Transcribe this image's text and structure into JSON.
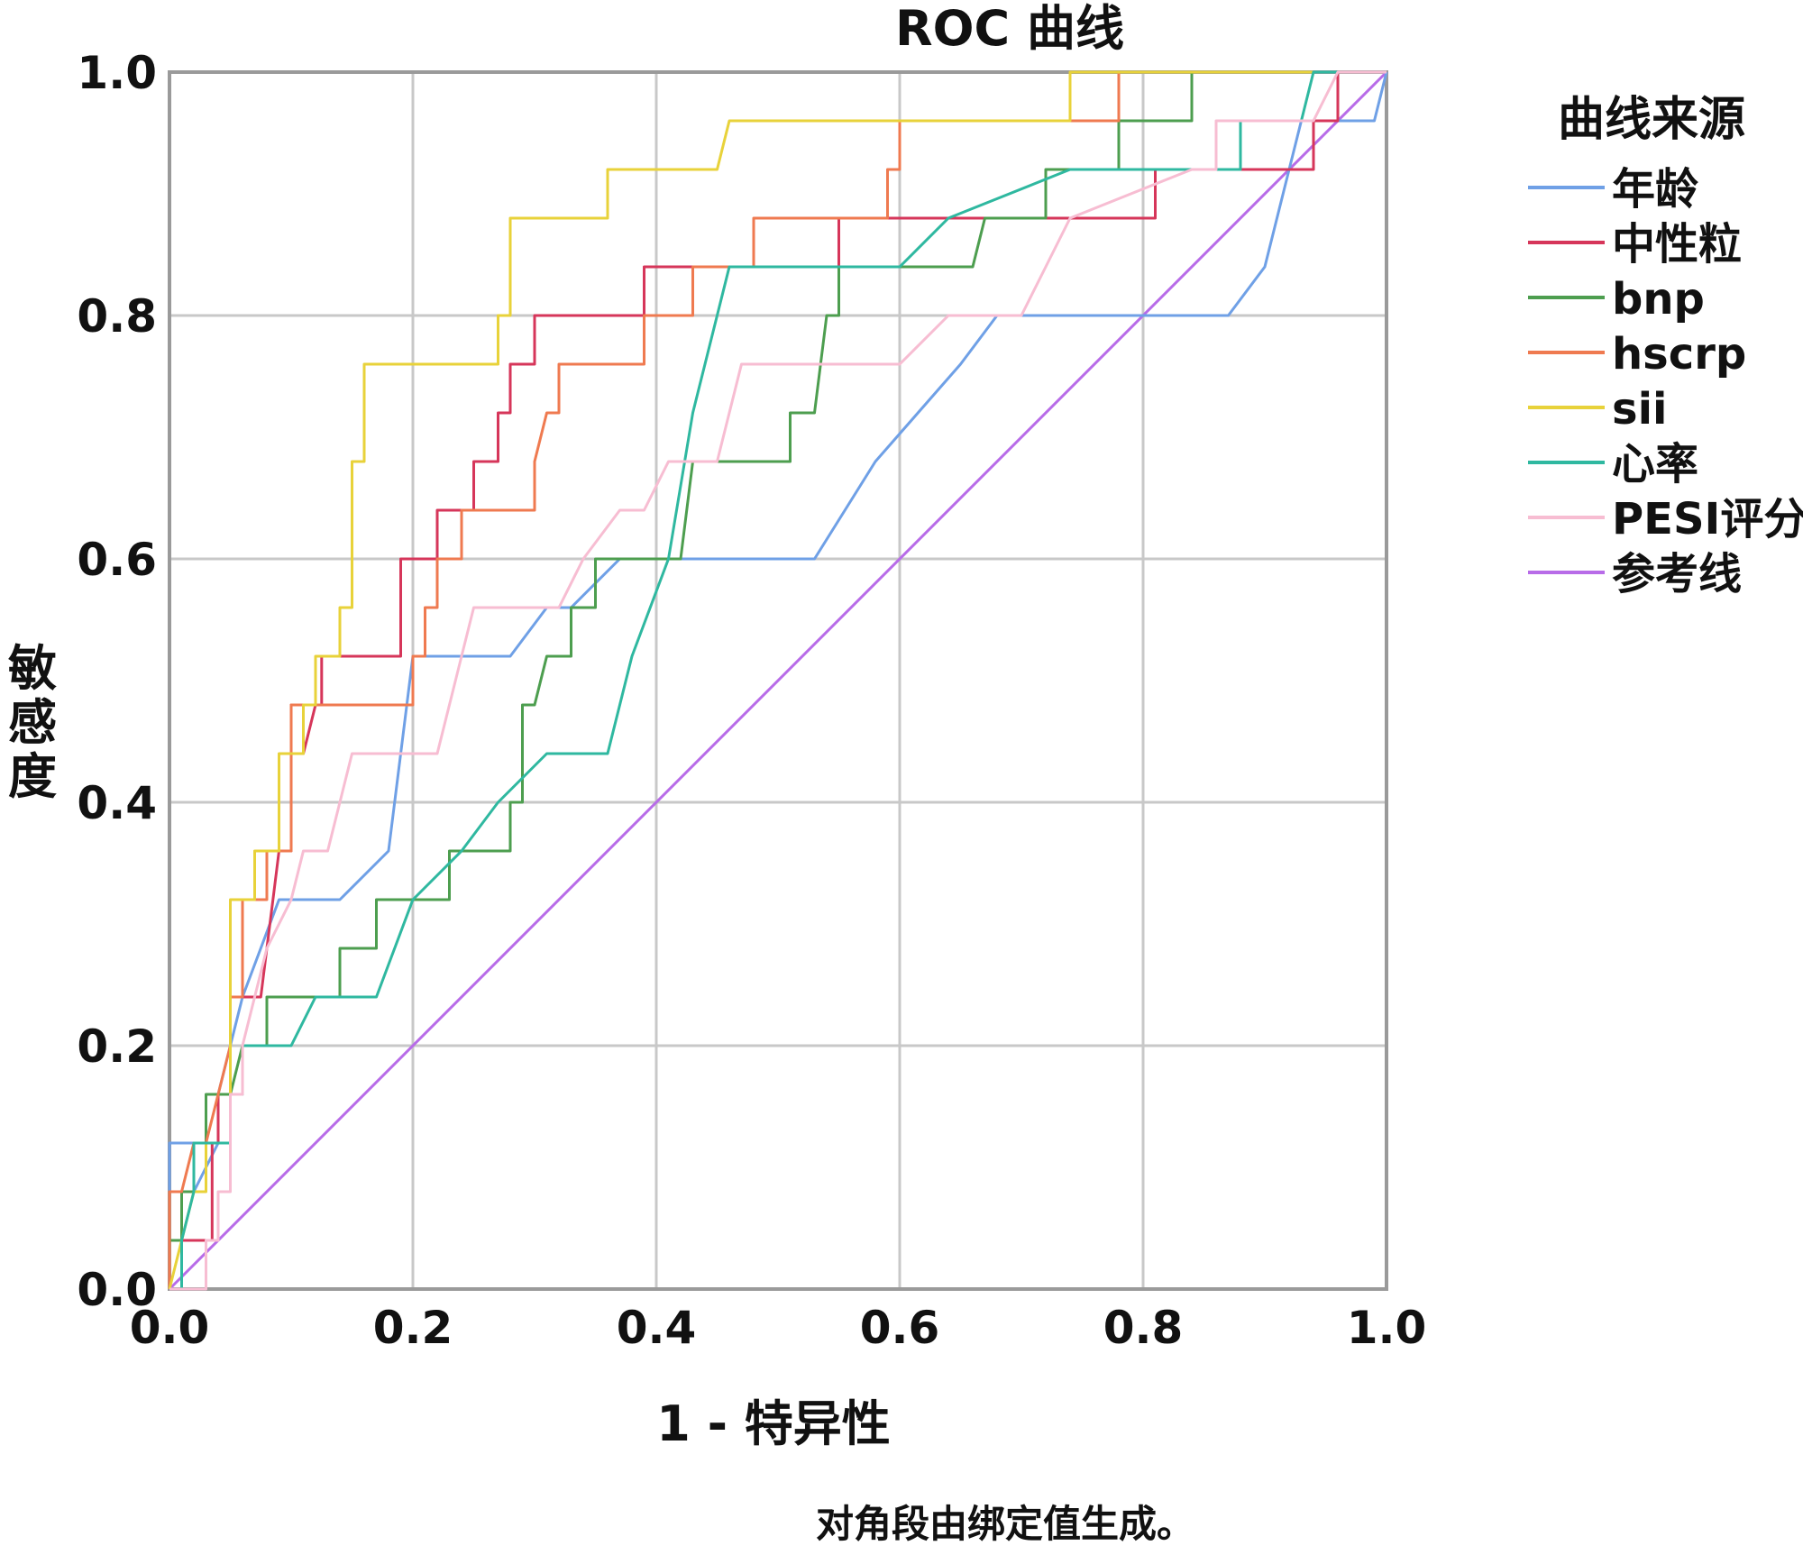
{
  "chart_data": {
    "type": "line",
    "title": "ROC 曲线",
    "xlabel": "1 - 特异性",
    "ylabel": "敏感度",
    "xlim": [
      0,
      1
    ],
    "ylim": [
      0,
      1
    ],
    "x_ticks": [
      "0.0",
      "0.2",
      "0.4",
      "0.6",
      "0.8",
      "1.0"
    ],
    "y_ticks": [
      "0.0",
      "0.2",
      "0.4",
      "0.6",
      "0.8",
      "1.0"
    ],
    "grid": true,
    "legend_title": "曲线来源",
    "legend_position": "right",
    "footnote": "对角段由绑定值生成。",
    "series": [
      {
        "name": "年龄",
        "color": "#6fa0e6",
        "points": [
          [
            0,
            0
          ],
          [
            0,
            0.12
          ],
          [
            0.02,
            0.12
          ],
          [
            0.02,
            0.08
          ],
          [
            0.04,
            0.12
          ],
          [
            0.04,
            0.16
          ],
          [
            0.06,
            0.24
          ],
          [
            0.09,
            0.32
          ],
          [
            0.14,
            0.32
          ],
          [
            0.18,
            0.36
          ],
          [
            0.2,
            0.52
          ],
          [
            0.28,
            0.52
          ],
          [
            0.31,
            0.56
          ],
          [
            0.33,
            0.56
          ],
          [
            0.37,
            0.6
          ],
          [
            0.53,
            0.6
          ],
          [
            0.58,
            0.68
          ],
          [
            0.65,
            0.76
          ],
          [
            0.68,
            0.8
          ],
          [
            0.87,
            0.8
          ],
          [
            0.9,
            0.84
          ],
          [
            0.93,
            0.96
          ],
          [
            0.99,
            0.96
          ],
          [
            1,
            1
          ]
        ]
      },
      {
        "name": "中性粒",
        "color": "#d6365a",
        "points": [
          [
            0,
            0
          ],
          [
            0.01,
            0
          ],
          [
            0.01,
            0.04
          ],
          [
            0.035,
            0.04
          ],
          [
            0.035,
            0.12
          ],
          [
            0.04,
            0.12
          ],
          [
            0.04,
            0.16
          ],
          [
            0.05,
            0.16
          ],
          [
            0.05,
            0.24
          ],
          [
            0.075,
            0.24
          ],
          [
            0.08,
            0.28
          ],
          [
            0.085,
            0.32
          ],
          [
            0.09,
            0.36
          ],
          [
            0.1,
            0.36
          ],
          [
            0.1,
            0.48
          ],
          [
            0.11,
            0.48
          ],
          [
            0.11,
            0.44
          ],
          [
            0.12,
            0.48
          ],
          [
            0.125,
            0.48
          ],
          [
            0.125,
            0.52
          ],
          [
            0.19,
            0.52
          ],
          [
            0.19,
            0.6
          ],
          [
            0.22,
            0.6
          ],
          [
            0.22,
            0.64
          ],
          [
            0.25,
            0.64
          ],
          [
            0.25,
            0.68
          ],
          [
            0.27,
            0.68
          ],
          [
            0.27,
            0.72
          ],
          [
            0.28,
            0.72
          ],
          [
            0.28,
            0.76
          ],
          [
            0.3,
            0.76
          ],
          [
            0.3,
            0.8
          ],
          [
            0.39,
            0.8
          ],
          [
            0.39,
            0.84
          ],
          [
            0.55,
            0.84
          ],
          [
            0.55,
            0.88
          ],
          [
            0.81,
            0.88
          ],
          [
            0.81,
            0.92
          ],
          [
            0.94,
            0.92
          ],
          [
            0.94,
            0.96
          ],
          [
            0.96,
            0.96
          ],
          [
            0.96,
            1
          ],
          [
            1,
            1
          ]
        ]
      },
      {
        "name": "bnp",
        "color": "#4d9e4f",
        "points": [
          [
            0,
            0
          ],
          [
            0,
            0.04
          ],
          [
            0.01,
            0.04
          ],
          [
            0.01,
            0.08
          ],
          [
            0.02,
            0.08
          ],
          [
            0.02,
            0.12
          ],
          [
            0.03,
            0.12
          ],
          [
            0.03,
            0.16
          ],
          [
            0.05,
            0.16
          ],
          [
            0.06,
            0.2
          ],
          [
            0.08,
            0.2
          ],
          [
            0.08,
            0.24
          ],
          [
            0.14,
            0.24
          ],
          [
            0.14,
            0.28
          ],
          [
            0.17,
            0.28
          ],
          [
            0.17,
            0.32
          ],
          [
            0.23,
            0.32
          ],
          [
            0.23,
            0.36
          ],
          [
            0.28,
            0.36
          ],
          [
            0.28,
            0.4
          ],
          [
            0.29,
            0.4
          ],
          [
            0.29,
            0.48
          ],
          [
            0.3,
            0.48
          ],
          [
            0.31,
            0.52
          ],
          [
            0.33,
            0.52
          ],
          [
            0.33,
            0.56
          ],
          [
            0.35,
            0.56
          ],
          [
            0.35,
            0.6
          ],
          [
            0.42,
            0.6
          ],
          [
            0.43,
            0.68
          ],
          [
            0.51,
            0.68
          ],
          [
            0.51,
            0.72
          ],
          [
            0.53,
            0.72
          ],
          [
            0.54,
            0.8
          ],
          [
            0.55,
            0.8
          ],
          [
            0.55,
            0.84
          ],
          [
            0.66,
            0.84
          ],
          [
            0.67,
            0.88
          ],
          [
            0.72,
            0.88
          ],
          [
            0.72,
            0.92
          ],
          [
            0.78,
            0.92
          ],
          [
            0.78,
            0.96
          ],
          [
            0.84,
            0.96
          ],
          [
            0.84,
            1
          ],
          [
            1,
            1
          ]
        ]
      },
      {
        "name": "hscrp",
        "color": "#ef7a50",
        "points": [
          [
            0,
            0
          ],
          [
            0,
            0.08
          ],
          [
            0.01,
            0.08
          ],
          [
            0.02,
            0.12
          ],
          [
            0.03,
            0.12
          ],
          [
            0.04,
            0.16
          ],
          [
            0.05,
            0.2
          ],
          [
            0.05,
            0.24
          ],
          [
            0.06,
            0.24
          ],
          [
            0.06,
            0.32
          ],
          [
            0.08,
            0.32
          ],
          [
            0.08,
            0.36
          ],
          [
            0.1,
            0.36
          ],
          [
            0.1,
            0.48
          ],
          [
            0.2,
            0.48
          ],
          [
            0.2,
            0.52
          ],
          [
            0.21,
            0.52
          ],
          [
            0.21,
            0.56
          ],
          [
            0.22,
            0.56
          ],
          [
            0.22,
            0.6
          ],
          [
            0.24,
            0.6
          ],
          [
            0.24,
            0.64
          ],
          [
            0.3,
            0.64
          ],
          [
            0.3,
            0.68
          ],
          [
            0.31,
            0.72
          ],
          [
            0.32,
            0.72
          ],
          [
            0.32,
            0.76
          ],
          [
            0.39,
            0.76
          ],
          [
            0.39,
            0.8
          ],
          [
            0.43,
            0.8
          ],
          [
            0.43,
            0.84
          ],
          [
            0.48,
            0.84
          ],
          [
            0.48,
            0.88
          ],
          [
            0.59,
            0.88
          ],
          [
            0.59,
            0.92
          ],
          [
            0.6,
            0.92
          ],
          [
            0.6,
            0.96
          ],
          [
            0.78,
            0.96
          ],
          [
            0.78,
            1
          ],
          [
            1,
            1
          ]
        ]
      },
      {
        "name": "sii",
        "color": "#e8d23a",
        "points": [
          [
            0,
            0
          ],
          [
            0.01,
            0.04
          ],
          [
            0.02,
            0.08
          ],
          [
            0.03,
            0.08
          ],
          [
            0.03,
            0.12
          ],
          [
            0.05,
            0.12
          ],
          [
            0.05,
            0.2
          ],
          [
            0.05,
            0.24
          ],
          [
            0.05,
            0.32
          ],
          [
            0.07,
            0.32
          ],
          [
            0.07,
            0.36
          ],
          [
            0.09,
            0.36
          ],
          [
            0.09,
            0.4
          ],
          [
            0.09,
            0.44
          ],
          [
            0.11,
            0.44
          ],
          [
            0.11,
            0.48
          ],
          [
            0.12,
            0.48
          ],
          [
            0.12,
            0.52
          ],
          [
            0.14,
            0.52
          ],
          [
            0.14,
            0.56
          ],
          [
            0.15,
            0.56
          ],
          [
            0.15,
            0.68
          ],
          [
            0.16,
            0.68
          ],
          [
            0.16,
            0.76
          ],
          [
            0.27,
            0.76
          ],
          [
            0.27,
            0.8
          ],
          [
            0.28,
            0.8
          ],
          [
            0.28,
            0.88
          ],
          [
            0.36,
            0.88
          ],
          [
            0.36,
            0.92
          ],
          [
            0.45,
            0.92
          ],
          [
            0.46,
            0.96
          ],
          [
            0.74,
            0.96
          ],
          [
            0.74,
            1
          ],
          [
            1,
            1
          ]
        ]
      },
      {
        "name": "心率",
        "color": "#2fb8a0",
        "points": [
          [
            0,
            0
          ],
          [
            0.01,
            0
          ],
          [
            0.01,
            0.04
          ],
          [
            0.02,
            0.08
          ],
          [
            0.02,
            0.12
          ],
          [
            0.05,
            0.12
          ],
          [
            0.05,
            0.16
          ],
          [
            0.06,
            0.16
          ],
          [
            0.06,
            0.2
          ],
          [
            0.1,
            0.2
          ],
          [
            0.12,
            0.24
          ],
          [
            0.17,
            0.24
          ],
          [
            0.2,
            0.32
          ],
          [
            0.24,
            0.36
          ],
          [
            0.27,
            0.4
          ],
          [
            0.31,
            0.44
          ],
          [
            0.36,
            0.44
          ],
          [
            0.38,
            0.52
          ],
          [
            0.41,
            0.6
          ],
          [
            0.43,
            0.72
          ],
          [
            0.45,
            0.8
          ],
          [
            0.46,
            0.84
          ],
          [
            0.6,
            0.84
          ],
          [
            0.64,
            0.88
          ],
          [
            0.74,
            0.92
          ],
          [
            0.88,
            0.92
          ],
          [
            0.88,
            0.96
          ],
          [
            0.93,
            0.96
          ],
          [
            0.94,
            1
          ],
          [
            1,
            1
          ]
        ]
      },
      {
        "name": "PESI评分",
        "color": "#f7bdd2",
        "points": [
          [
            0,
            0
          ],
          [
            0.03,
            0
          ],
          [
            0.03,
            0.04
          ],
          [
            0.04,
            0.04
          ],
          [
            0.04,
            0.08
          ],
          [
            0.05,
            0.08
          ],
          [
            0.05,
            0.16
          ],
          [
            0.06,
            0.16
          ],
          [
            0.06,
            0.2
          ],
          [
            0.07,
            0.24
          ],
          [
            0.08,
            0.28
          ],
          [
            0.1,
            0.32
          ],
          [
            0.11,
            0.36
          ],
          [
            0.13,
            0.36
          ],
          [
            0.15,
            0.44
          ],
          [
            0.22,
            0.44
          ],
          [
            0.25,
            0.56
          ],
          [
            0.32,
            0.56
          ],
          [
            0.34,
            0.6
          ],
          [
            0.37,
            0.64
          ],
          [
            0.39,
            0.64
          ],
          [
            0.41,
            0.68
          ],
          [
            0.45,
            0.68
          ],
          [
            0.47,
            0.76
          ],
          [
            0.6,
            0.76
          ],
          [
            0.64,
            0.8
          ],
          [
            0.7,
            0.8
          ],
          [
            0.72,
            0.84
          ],
          [
            0.74,
            0.88
          ],
          [
            0.84,
            0.92
          ],
          [
            0.86,
            0.92
          ],
          [
            0.86,
            0.96
          ],
          [
            0.94,
            0.96
          ],
          [
            0.96,
            1
          ],
          [
            1,
            1
          ]
        ]
      },
      {
        "name": "参考线",
        "color": "#b86ce8",
        "points": [
          [
            0,
            0
          ],
          [
            1,
            1
          ]
        ]
      }
    ]
  }
}
